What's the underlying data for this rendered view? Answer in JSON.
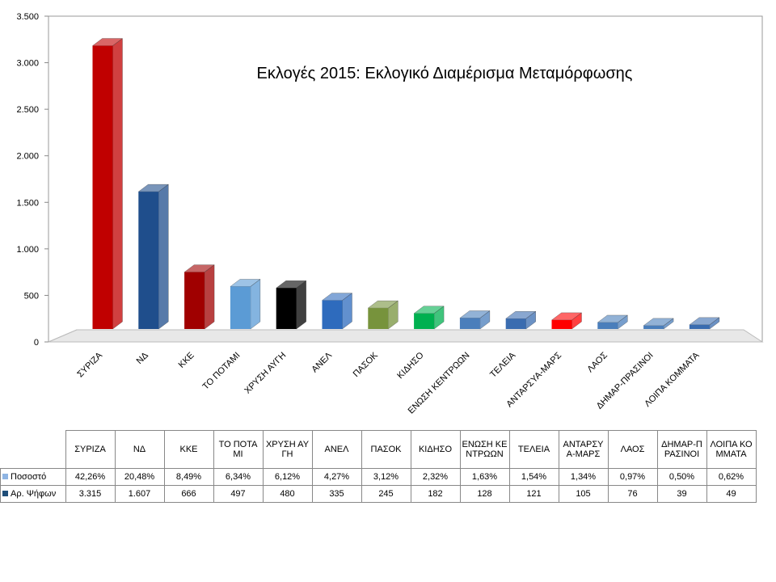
{
  "chart_data": {
    "type": "bar3d",
    "title": "Εκλογές 2015: Εκλογικό Διαμέρισμα Μεταμόρφωσης",
    "categories": [
      "ΣΥΡΙΖΑ",
      "ΝΔ",
      "ΚΚΕ",
      "ΤΟ ΠΟΤΑΜΙ",
      "ΧΡΥΣΗ ΑΥΓΗ",
      "ΑΝΕΛ",
      "ΠΑΣΟΚ",
      "ΚΙΔΗΣΟ",
      "ΕΝΩΣΗ ΚΕΝΤΡΩΩΝ",
      "ΤΕΛΕΙΑ",
      "ΑΝΤΑΡΣΥΑ-ΜΑΡΣ",
      "ΛΑΟΣ",
      "ΔΗΜΑΡ-ΠΡΑΣΙΝΟΙ",
      "ΛΟΙΠΑ ΚΟΜΜΑΤΑ"
    ],
    "bar_colors": [
      "#c00000",
      "#1f4e8c",
      "#a00000",
      "#5b9bd5",
      "#000000",
      "#2e6bbd",
      "#77933c",
      "#00b050",
      "#4a7ebb",
      "#3a6cb0",
      "#ff0000",
      "#4a7ebb",
      "#4a7ebb",
      "#3a6cb0"
    ],
    "series": [
      {
        "name": "Ποσοστό",
        "color": "#8eb4e3",
        "plotted": false,
        "values": [
          42.26,
          20.48,
          8.49,
          6.34,
          6.12,
          4.27,
          3.12,
          2.32,
          1.63,
          1.54,
          1.34,
          0.97,
          0.5,
          0.62
        ],
        "value_labels": [
          "42,26%",
          "20,48%",
          "8,49%",
          "6,34%",
          "6,12%",
          "4,27%",
          "3,12%",
          "2,32%",
          "1,63%",
          "1,54%",
          "1,34%",
          "0,97%",
          "0,50%",
          "0,62%"
        ]
      },
      {
        "name": "Αρ. Ψήφων",
        "color": "#1f4e79",
        "plotted": true,
        "values": [
          3315,
          1607,
          666,
          497,
          480,
          335,
          245,
          182,
          128,
          121,
          105,
          76,
          39,
          49
        ],
        "value_labels": [
          "3.315",
          "1.607",
          "666",
          "497",
          "480",
          "335",
          "245",
          "182",
          "128",
          "121",
          "105",
          "76",
          "39",
          "49"
        ]
      }
    ],
    "ylim": [
      0,
      3500
    ],
    "yticks": [
      0,
      500,
      {
        "value": 1000,
        "label": "1.000"
      },
      {
        "value": 1500,
        "label": "1.500"
      },
      {
        "value": 2000,
        "label": "2.000"
      },
      {
        "value": 2500,
        "label": "2.500"
      },
      {
        "value": 3000,
        "label": "3.000"
      },
      {
        "value": 3500,
        "label": "3.500"
      }
    ]
  }
}
